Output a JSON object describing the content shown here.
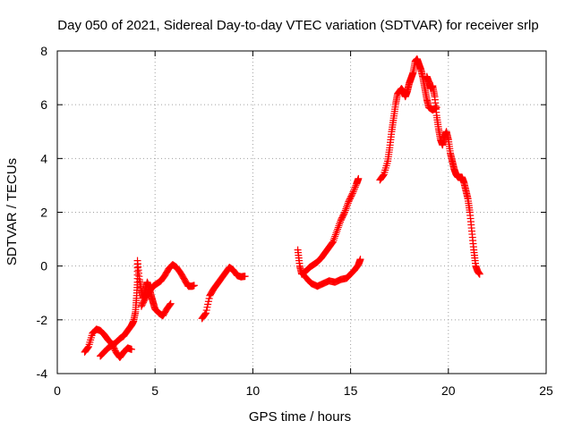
{
  "chart_data": {
    "type": "scatter",
    "title": "Day 050 of 2021, Sidereal Day-to-day VTEC variation (SDTVAR) for receiver srlp",
    "xlabel": "GPS time / hours",
    "ylabel": "SDTVAR / TECUs",
    "xlim": [
      0,
      25
    ],
    "ylim": [
      -4,
      8
    ],
    "xticks": [
      0,
      5,
      10,
      15,
      20,
      25
    ],
    "yticks": [
      -4,
      -2,
      0,
      2,
      4,
      6,
      8
    ],
    "grid": true,
    "marker": "+",
    "color": "#ff0000",
    "series": [
      {
        "name": "SDTVAR",
        "segments": [
          [
            [
              1.4,
              -3.2
            ],
            [
              1.6,
              -3.0
            ],
            [
              1.8,
              -2.5
            ],
            [
              2.0,
              -2.35
            ],
            [
              2.2,
              -2.4
            ],
            [
              2.4,
              -2.55
            ],
            [
              2.6,
              -2.75
            ],
            [
              2.8,
              -2.9
            ],
            [
              3.0,
              -3.2
            ],
            [
              3.2,
              -3.4
            ],
            [
              3.4,
              -3.2
            ],
            [
              3.6,
              -3.05
            ],
            [
              3.8,
              -3.1
            ]
          ],
          [
            [
              2.2,
              -3.35
            ],
            [
              2.4,
              -3.2
            ],
            [
              2.6,
              -3.05
            ],
            [
              2.8,
              -2.95
            ],
            [
              3.0,
              -2.85
            ],
            [
              3.2,
              -2.7
            ],
            [
              3.4,
              -2.6
            ],
            [
              3.6,
              -2.4
            ],
            [
              3.8,
              -2.2
            ],
            [
              3.9,
              -2.05
            ],
            [
              4.0,
              -1.7
            ],
            [
              4.05,
              -1.2
            ],
            [
              4.1,
              -0.6
            ],
            [
              4.1,
              0.2
            ],
            [
              4.2,
              -0.5
            ],
            [
              4.3,
              -0.9
            ],
            [
              4.4,
              -1.2
            ],
            [
              4.5,
              -0.9
            ],
            [
              4.6,
              -0.6
            ],
            [
              4.7,
              -0.8
            ],
            [
              4.8,
              -1.1
            ],
            [
              4.9,
              -1.35
            ],
            [
              5.0,
              -1.6
            ],
            [
              5.2,
              -1.75
            ],
            [
              5.4,
              -1.85
            ],
            [
              5.6,
              -1.6
            ],
            [
              5.8,
              -1.4
            ]
          ],
          [
            [
              4.3,
              -1.5
            ],
            [
              4.5,
              -1.2
            ],
            [
              4.7,
              -0.95
            ],
            [
              4.9,
              -0.75
            ],
            [
              5.1,
              -0.65
            ],
            [
              5.3,
              -0.55
            ],
            [
              5.5,
              -0.35
            ],
            [
              5.7,
              -0.1
            ],
            [
              5.9,
              0.05
            ],
            [
              6.1,
              -0.05
            ],
            [
              6.3,
              -0.25
            ],
            [
              6.5,
              -0.5
            ],
            [
              6.7,
              -0.75
            ],
            [
              6.9,
              -0.75
            ],
            [
              7.0,
              -0.72
            ]
          ],
          [
            [
              7.4,
              -1.95
            ],
            [
              7.6,
              -1.75
            ],
            [
              7.8,
              -1.1
            ],
            [
              8.0,
              -0.85
            ],
            [
              8.2,
              -0.65
            ],
            [
              8.4,
              -0.45
            ],
            [
              8.6,
              -0.25
            ],
            [
              8.8,
              -0.05
            ],
            [
              9.0,
              -0.15
            ],
            [
              9.2,
              -0.35
            ],
            [
              9.4,
              -0.4
            ],
            [
              9.6,
              -0.38
            ]
          ],
          [
            [
              12.3,
              0.6
            ],
            [
              12.4,
              0.0
            ],
            [
              12.5,
              -0.3
            ],
            [
              12.7,
              -0.2
            ],
            [
              12.9,
              -0.05
            ],
            [
              13.1,
              0.05
            ],
            [
              13.3,
              0.15
            ],
            [
              13.5,
              0.3
            ],
            [
              13.7,
              0.5
            ],
            [
              13.9,
              0.7
            ],
            [
              14.1,
              0.9
            ],
            [
              14.3,
              1.3
            ],
            [
              14.5,
              1.7
            ],
            [
              14.7,
              2.0
            ],
            [
              14.9,
              2.4
            ],
            [
              15.1,
              2.7
            ],
            [
              15.3,
              3.05
            ],
            [
              15.4,
              3.25
            ]
          ],
          [
            [
              12.5,
              -0.25
            ],
            [
              12.8,
              -0.5
            ],
            [
              13.0,
              -0.65
            ],
            [
              13.3,
              -0.75
            ],
            [
              13.6,
              -0.65
            ],
            [
              13.9,
              -0.55
            ],
            [
              14.2,
              -0.6
            ],
            [
              14.5,
              -0.5
            ],
            [
              14.8,
              -0.45
            ],
            [
              15.0,
              -0.3
            ],
            [
              15.2,
              -0.15
            ],
            [
              15.4,
              0.05
            ],
            [
              15.5,
              0.25
            ]
          ],
          [
            [
              16.5,
              3.2
            ],
            [
              16.7,
              3.4
            ],
            [
              16.9,
              3.9
            ],
            [
              17.0,
              4.4
            ],
            [
              17.1,
              5.0
            ],
            [
              17.2,
              5.5
            ],
            [
              17.3,
              6.0
            ],
            [
              17.4,
              6.4
            ],
            [
              17.6,
              6.6
            ],
            [
              17.7,
              6.5
            ],
            [
              17.8,
              6.3
            ],
            [
              17.9,
              6.5
            ],
            [
              18.0,
              6.8
            ],
            [
              18.1,
              7.0
            ],
            [
              18.2,
              7.2
            ],
            [
              18.3,
              7.6
            ],
            [
              18.4,
              7.7
            ],
            [
              18.5,
              7.5
            ],
            [
              18.6,
              7.3
            ],
            [
              18.7,
              7.0
            ],
            [
              18.8,
              6.6
            ],
            [
              18.9,
              6.2
            ],
            [
              19.0,
              5.9
            ],
            [
              19.2,
              5.8
            ],
            [
              19.4,
              5.9
            ]
          ],
          [
            [
              18.9,
              7.05
            ],
            [
              19.0,
              6.85
            ],
            [
              19.1,
              6.6
            ],
            [
              19.2,
              6.7
            ],
            [
              19.3,
              6.3
            ],
            [
              19.4,
              5.6
            ],
            [
              19.5,
              5.1
            ],
            [
              19.6,
              4.7
            ],
            [
              19.7,
              4.5
            ],
            [
              19.8,
              4.8
            ],
            [
              19.9,
              5.0
            ],
            [
              20.0,
              4.7
            ],
            [
              20.1,
              4.2
            ],
            [
              20.2,
              3.9
            ],
            [
              20.3,
              3.6
            ],
            [
              20.4,
              3.4
            ],
            [
              20.5,
              3.3
            ],
            [
              20.6,
              3.3
            ],
            [
              20.7,
              3.3
            ],
            [
              20.8,
              3.1
            ],
            [
              20.9,
              2.8
            ],
            [
              21.0,
              2.5
            ],
            [
              21.1,
              2.0
            ],
            [
              21.2,
              1.3
            ],
            [
              21.3,
              0.6
            ],
            [
              21.4,
              0.0
            ],
            [
              21.5,
              -0.2
            ],
            [
              21.6,
              -0.3
            ]
          ]
        ]
      }
    ]
  }
}
